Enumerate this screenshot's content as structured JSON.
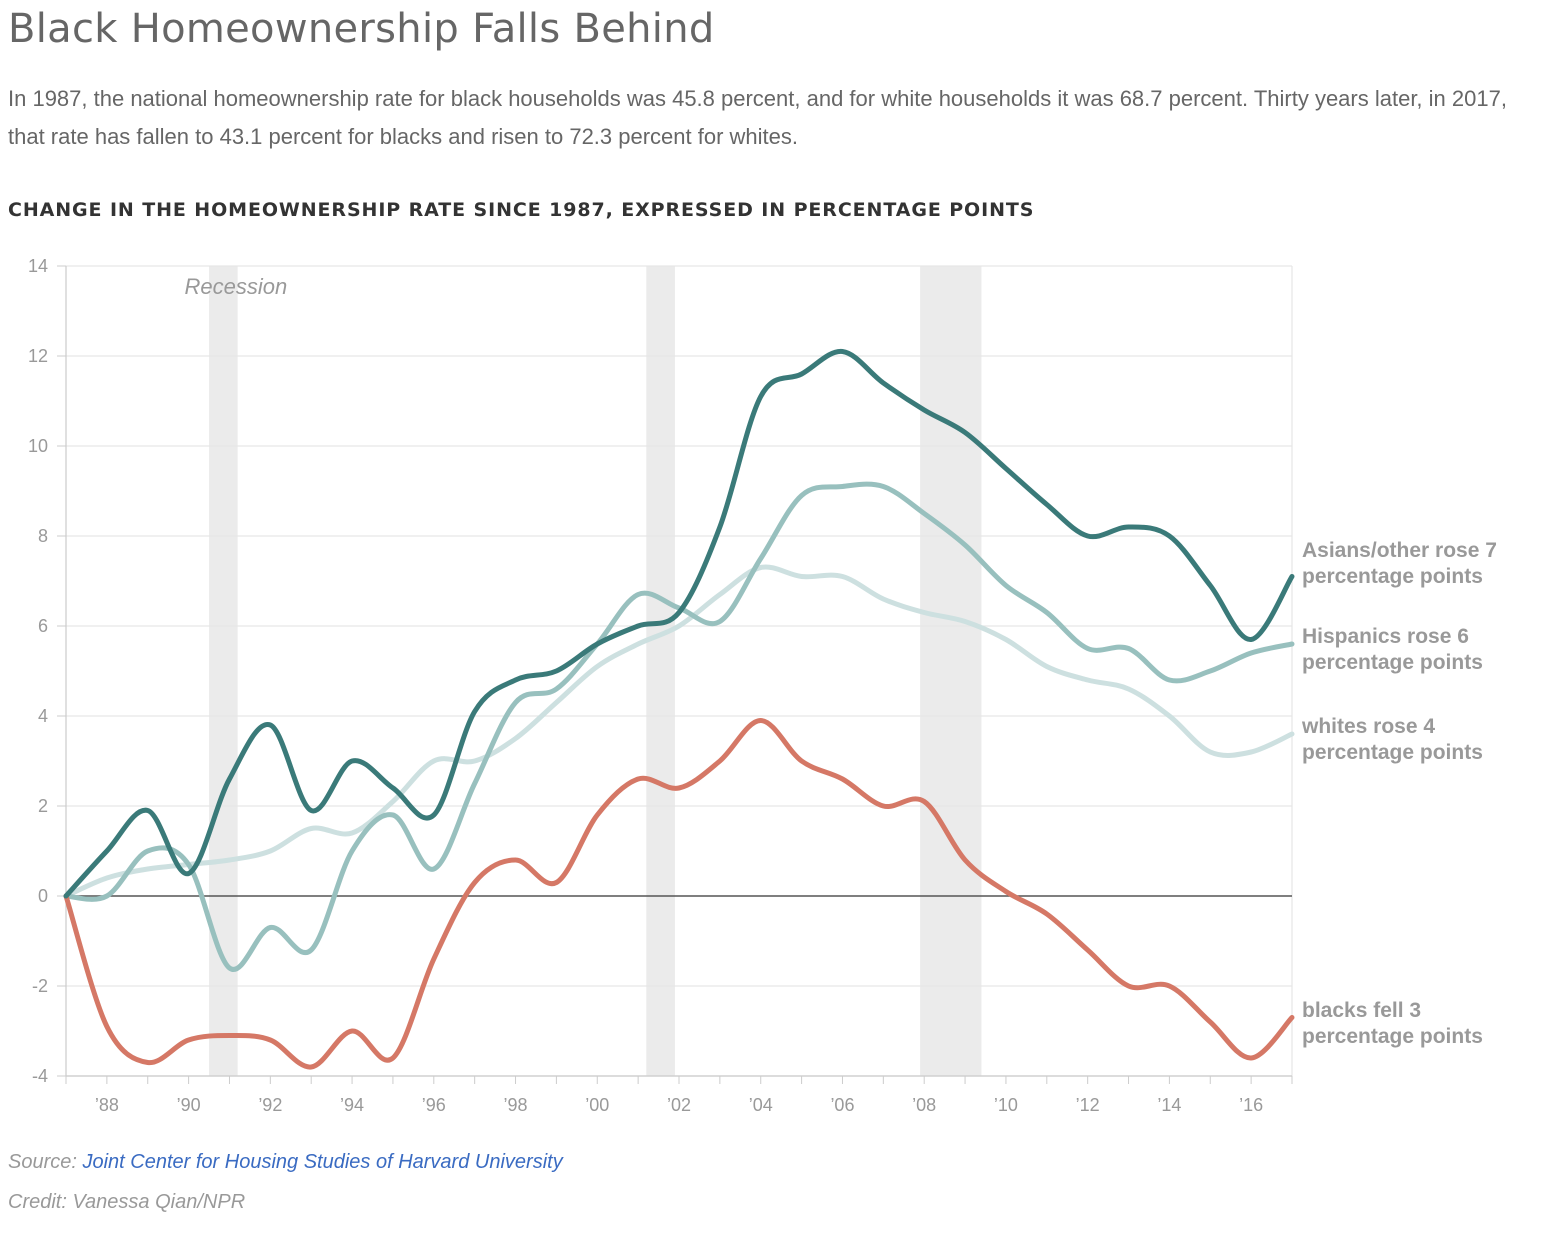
{
  "header": {
    "title": "Black Homeownership Falls Behind",
    "subtitle": "In 1987, the national homeownership rate for black households was 45.8 percent, and for white households it was 68.7 percent. Thirty years later, in 2017, that rate has fallen to 43.1 percent for blacks and risen to 72.3 percent for whites."
  },
  "chart_data": {
    "type": "line",
    "title": "CHANGE IN THE HOMEOWNERSHIP RATE SINCE 1987, EXPRESSED IN PERCENTAGE POINTS",
    "xlabel": "",
    "ylabel": "",
    "xlim": [
      1987,
      2017
    ],
    "ylim": [
      -4,
      14
    ],
    "yticks": [
      -4,
      -2,
      0,
      2,
      4,
      6,
      8,
      10,
      12,
      14
    ],
    "xticks": [
      {
        "value": 1988,
        "label": "’88"
      },
      {
        "value": 1990,
        "label": "’90"
      },
      {
        "value": 1992,
        "label": "’92"
      },
      {
        "value": 1994,
        "label": "’94"
      },
      {
        "value": 1996,
        "label": "’96"
      },
      {
        "value": 1998,
        "label": "’98"
      },
      {
        "value": 2000,
        "label": "’00"
      },
      {
        "value": 2002,
        "label": "’02"
      },
      {
        "value": 2004,
        "label": "’04"
      },
      {
        "value": 2006,
        "label": "’06"
      },
      {
        "value": 2008,
        "label": "’08"
      },
      {
        "value": 2010,
        "label": "’10"
      },
      {
        "value": 2012,
        "label": "’12"
      },
      {
        "value": 2014,
        "label": "’14"
      },
      {
        "value": 2016,
        "label": "’16"
      }
    ],
    "grid": true,
    "recession_label": "Recession",
    "recessions": [
      [
        1990.5,
        1991.2
      ],
      [
        2001.2,
        2001.9
      ],
      [
        2007.9,
        2009.4
      ]
    ],
    "x": [
      1987,
      1988,
      1989,
      1990,
      1991,
      1992,
      1993,
      1994,
      1995,
      1996,
      1997,
      1998,
      1999,
      2000,
      2001,
      2002,
      2003,
      2004,
      2005,
      2006,
      2007,
      2008,
      2009,
      2010,
      2011,
      2012,
      2013,
      2014,
      2015,
      2016,
      2017
    ],
    "series": [
      {
        "name": "Asians/other",
        "label_lines": [
          "Asians/other rose 7",
          "percentage points"
        ],
        "color": "#3a7a79",
        "values": [
          0,
          1.0,
          1.9,
          0.5,
          2.6,
          3.8,
          1.9,
          3.0,
          2.4,
          1.8,
          4.1,
          4.8,
          5.0,
          5.6,
          6.0,
          6.3,
          8.2,
          11.1,
          11.6,
          12.1,
          11.4,
          10.8,
          10.3,
          9.5,
          8.7,
          8.0,
          8.2,
          8.0,
          6.9,
          5.7,
          7.1
        ]
      },
      {
        "name": "Hispanics",
        "label_lines": [
          "Hispanics rose 6",
          "percentage points"
        ],
        "color": "#98c0be",
        "values": [
          0,
          0,
          1.0,
          0.7,
          -1.6,
          -0.7,
          -1.2,
          1.0,
          1.8,
          0.6,
          2.5,
          4.3,
          4.6,
          5.6,
          6.7,
          6.4,
          6.1,
          7.5,
          8.9,
          9.1,
          9.1,
          8.5,
          7.8,
          6.9,
          6.3,
          5.5,
          5.5,
          4.8,
          5.0,
          5.4,
          5.6
        ]
      },
      {
        "name": "whites",
        "label_lines": [
          "whites rose 4",
          "percentage points"
        ],
        "color": "#cde0e0",
        "values": [
          0,
          0.4,
          0.6,
          0.7,
          0.8,
          1.0,
          1.5,
          1.4,
          2.1,
          3.0,
          3.0,
          3.5,
          4.3,
          5.1,
          5.6,
          6.0,
          6.7,
          7.3,
          7.1,
          7.1,
          6.6,
          6.3,
          6.1,
          5.7,
          5.1,
          4.8,
          4.6,
          4.0,
          3.2,
          3.2,
          3.6
        ]
      },
      {
        "name": "blacks",
        "label_lines": [
          "blacks fell 3",
          "percentage points"
        ],
        "color": "#d57866",
        "values": [
          0,
          -2.9,
          -3.7,
          -3.2,
          -3.1,
          -3.2,
          -3.8,
          -3.0,
          -3.6,
          -1.4,
          0.3,
          0.8,
          0.3,
          1.8,
          2.6,
          2.4,
          3.0,
          3.9,
          3.0,
          2.6,
          2.0,
          2.1,
          0.8,
          0.1,
          -0.4,
          -1.2,
          -2.0,
          -2.0,
          -2.8,
          -3.6,
          -2.7
        ]
      }
    ]
  },
  "footer": {
    "source_prefix": "Source: ",
    "source_link": "Joint Center for Housing Studies of Harvard University",
    "credit": "Credit: Vanessa Qian/NPR"
  }
}
